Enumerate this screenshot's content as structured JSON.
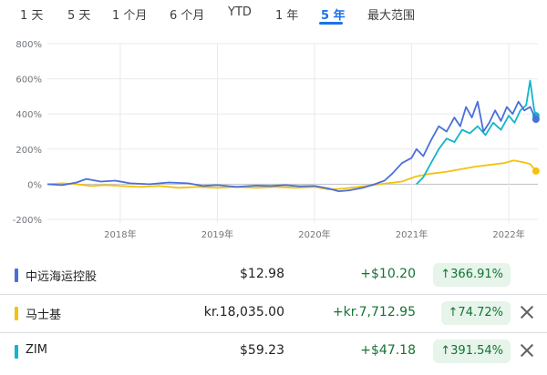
{
  "tabs": {
    "items": [
      "1 天",
      "5 天",
      "1 个月",
      "6 个月",
      "YTD",
      "1 年",
      "5 年",
      "最大范围"
    ],
    "active_index": 6
  },
  "chart_data": {
    "type": "line",
    "ylim": [
      -200,
      800
    ],
    "yticks": [
      -200,
      0,
      200,
      400,
      600,
      800
    ],
    "ytick_labels": [
      "-200%",
      "0%",
      "200%",
      "400%",
      "600%",
      "800%"
    ],
    "xtick_labels": [
      "2018年",
      "2019年",
      "2020年",
      "2021年",
      "2022年"
    ],
    "xticks": [
      2018.0,
      2019.0,
      2020.0,
      2021.0,
      2022.0
    ],
    "xlim": [
      2017.25,
      2022.3
    ],
    "grid": true,
    "series": [
      {
        "name": "中远海运控股",
        "color": "#4a6fd8",
        "x": [
          2017.25,
          2017.4,
          2017.55,
          2017.65,
          2017.8,
          2017.95,
          2018.1,
          2018.3,
          2018.5,
          2018.7,
          2018.85,
          2019.0,
          2019.2,
          2019.4,
          2019.55,
          2019.7,
          2019.85,
          2020.0,
          2020.15,
          2020.25,
          2020.35,
          2020.5,
          2020.62,
          2020.72,
          2020.8,
          2020.9,
          2021.0,
          2021.05,
          2021.12,
          2021.2,
          2021.28,
          2021.36,
          2021.44,
          2021.5,
          2021.56,
          2021.62,
          2021.68,
          2021.74,
          2021.8,
          2021.86,
          2021.92,
          2021.98,
          2022.04,
          2022.1,
          2022.16,
          2022.22,
          2022.28
        ],
        "values": [
          0,
          -5,
          10,
          30,
          15,
          20,
          5,
          0,
          10,
          5,
          -10,
          -5,
          -15,
          -8,
          -10,
          -5,
          -12,
          -10,
          -25,
          -40,
          -35,
          -20,
          0,
          20,
          60,
          120,
          150,
          200,
          160,
          250,
          330,
          300,
          380,
          330,
          440,
          380,
          470,
          300,
          350,
          420,
          360,
          440,
          400,
          470,
          420,
          440,
          370
        ]
      },
      {
        "name": "马士基",
        "color": "#f4c20d",
        "x": [
          2017.25,
          2017.4,
          2017.55,
          2017.7,
          2017.85,
          2018.0,
          2018.2,
          2018.4,
          2018.6,
          2018.8,
          2019.0,
          2019.2,
          2019.4,
          2019.6,
          2019.8,
          2020.0,
          2020.15,
          2020.3,
          2020.45,
          2020.6,
          2020.75,
          2020.9,
          2021.05,
          2021.2,
          2021.35,
          2021.5,
          2021.65,
          2021.8,
          2021.95,
          2022.05,
          2022.15,
          2022.22,
          2022.28
        ],
        "values": [
          0,
          5,
          0,
          -10,
          -5,
          -10,
          -15,
          -10,
          -20,
          -15,
          -20,
          -15,
          -20,
          -15,
          -20,
          -15,
          -30,
          -25,
          -15,
          -5,
          5,
          15,
          45,
          60,
          70,
          85,
          100,
          110,
          120,
          135,
          125,
          115,
          75
        ]
      },
      {
        "name": "ZIM",
        "color": "#12b5cb",
        "x": [
          2021.05,
          2021.12,
          2021.2,
          2021.28,
          2021.36,
          2021.44,
          2021.52,
          2021.6,
          2021.68,
          2021.76,
          2021.84,
          2021.92,
          2022.0,
          2022.06,
          2022.12,
          2022.18,
          2022.22,
          2022.26,
          2022.28
        ],
        "values": [
          0,
          40,
          120,
          200,
          260,
          240,
          310,
          290,
          330,
          280,
          350,
          310,
          390,
          350,
          420,
          450,
          590,
          430,
          390
        ]
      }
    ]
  },
  "rows": [
    {
      "name": "中远海运控股",
      "price": "$12.98",
      "change": "+$10.20",
      "pct": "↑366.91%",
      "color": "#4a6fd8",
      "closable": false
    },
    {
      "name": "马士基",
      "price": "kr.18,035.00",
      "change": "+kr.7,712.95",
      "pct": "↑74.72%",
      "color": "#f4c20d",
      "closable": true
    },
    {
      "name": "ZIM",
      "price": "$59.23",
      "change": "+$47.18",
      "pct": "↑391.54%",
      "color": "#12b5cb",
      "closable": true
    }
  ]
}
